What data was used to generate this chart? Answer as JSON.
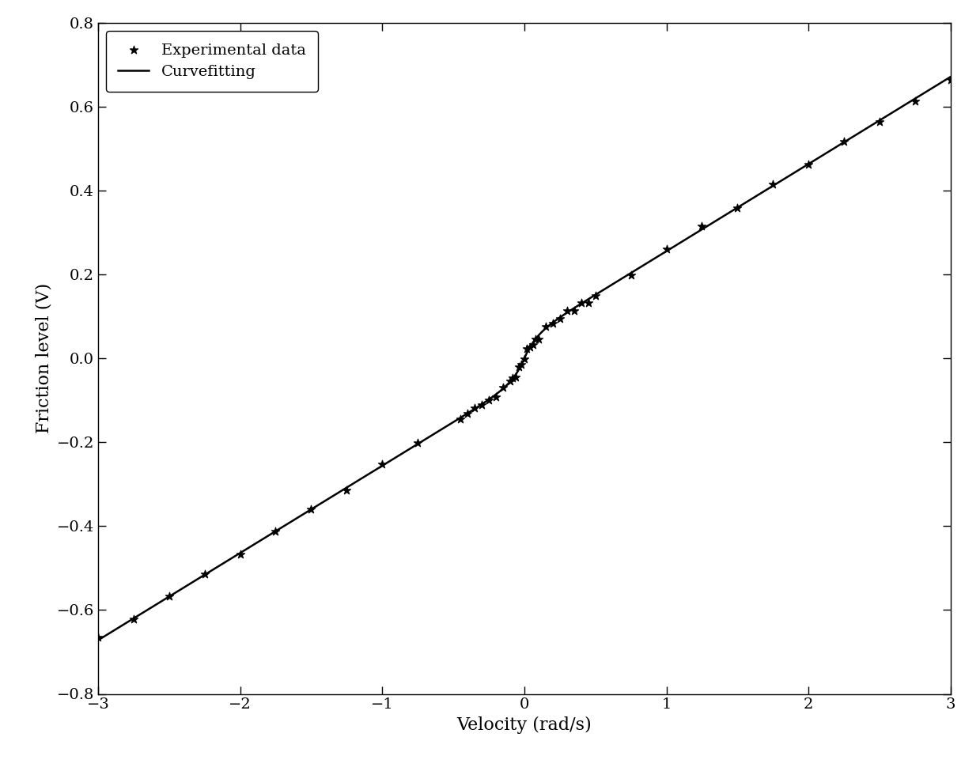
{
  "xlabel": "Velocity (rad/s)",
  "ylabel": "Friction level (V)",
  "xlim": [
    -3,
    3
  ],
  "ylim": [
    -0.8,
    0.8
  ],
  "xticks": [
    -3,
    -2,
    -1,
    0,
    1,
    2,
    3
  ],
  "yticks": [
    -0.8,
    -0.6,
    -0.4,
    -0.2,
    0,
    0.2,
    0.4,
    0.6,
    0.8
  ],
  "legend_labels": [
    "Experimental data",
    "Curvefitting"
  ],
  "background_color": "#ffffff",
  "line_color": "#000000",
  "scatter_color": "#000000",
  "viscous_coeff": 0.208,
  "coulomb_friction": 0.048,
  "stribeck_velocity": 0.08
}
